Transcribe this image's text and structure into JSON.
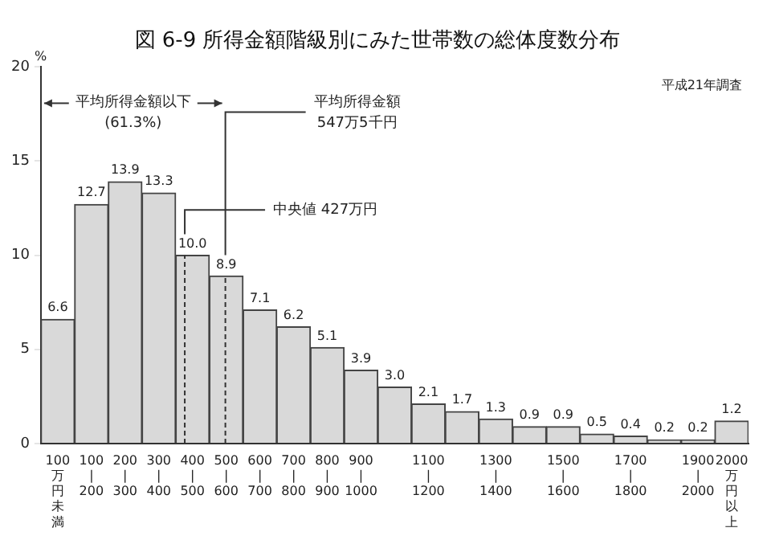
{
  "chart_data": {
    "type": "bar",
    "title": "図 6-9 所得金額階級別にみた世帯数の総体度数分布",
    "ylabel": "%",
    "categories": [
      "100万円未満",
      "100\n|\n200",
      "200\n|\n300",
      "300\n|\n400",
      "400\n|\n500",
      "500\n|\n600",
      "600\n|\n700",
      "700\n|\n800",
      "800\n|\n900",
      "900\n|\n1000",
      null,
      "1100\n|\n1200",
      null,
      "1300\n|\n1400",
      null,
      "1500\n|\n1600",
      null,
      "1700\n|\n1800",
      null,
      "1900\n|\n2000",
      "2000万円以上"
    ],
    "values": [
      6.6,
      12.7,
      13.9,
      13.3,
      10.0,
      8.9,
      7.1,
      6.2,
      5.1,
      3.9,
      3.0,
      2.1,
      1.7,
      1.3,
      0.9,
      0.9,
      0.5,
      0.4,
      0.2,
      0.2,
      1.2
    ],
    "value_labels": [
      "6.6",
      "12.7",
      "13.9",
      "13.3",
      "10.0",
      "8.9",
      "7.1",
      "6.2",
      "5.1",
      "3.9",
      "3.0",
      "2.1",
      "1.7",
      "1.3",
      "0.9",
      "0.9",
      "0.5",
      "0.4",
      "0.2",
      "0.2",
      "1.2"
    ],
    "color": "#d9d9d9",
    "ylim": [
      0,
      20
    ],
    "yticks": [
      0,
      5,
      10,
      15,
      20
    ],
    "annotations": [
      "平成21年調査",
      "平均所得金額以下\n(61.3%)",
      "平均所得金額\n547万5千円",
      "中央値 427万円"
    ]
  }
}
